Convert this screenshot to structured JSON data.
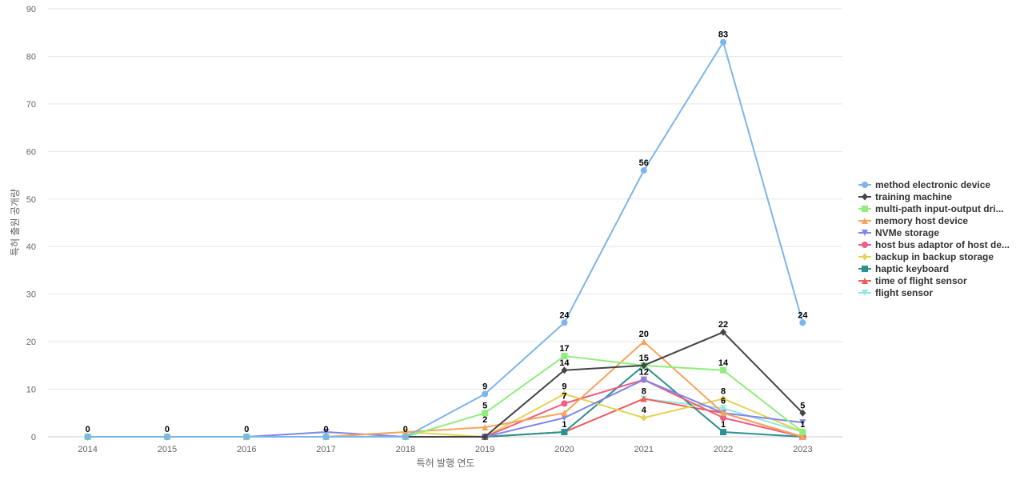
{
  "chart_data": {
    "type": "line",
    "xlabel": "특허 발행 연도",
    "ylabel": "특허 출원 공개량",
    "x": [
      "2014",
      "2015",
      "2016",
      "2017",
      "2018",
      "2019",
      "2020",
      "2021",
      "2022",
      "2023"
    ],
    "ylim": [
      0,
      90
    ],
    "yticks": [
      0,
      10,
      20,
      30,
      40,
      50,
      60,
      70,
      80,
      90
    ],
    "grid": true,
    "legend_position": "right",
    "series": [
      {
        "name": "method electronic device",
        "color": "#7cb5ec",
        "marker": "circle",
        "values": [
          0,
          0,
          0,
          0,
          0,
          9,
          24,
          56,
          83,
          24
        ]
      },
      {
        "name": "training machine",
        "color": "#434348",
        "marker": "diamond",
        "values": [
          0,
          0,
          0,
          0,
          0,
          0,
          14,
          15,
          22,
          5
        ]
      },
      {
        "name": "multi-path input-output dri...",
        "color": "#90ed7d",
        "marker": "square",
        "values": [
          0,
          0,
          0,
          0,
          0,
          5,
          17,
          15,
          14,
          1
        ]
      },
      {
        "name": "memory host device",
        "color": "#f7a35c",
        "marker": "triangle",
        "values": [
          0,
          0,
          0,
          0,
          1,
          2,
          5,
          20,
          5,
          0
        ]
      },
      {
        "name": "NVMe storage",
        "color": "#8085e9",
        "marker": "triangle-down",
        "values": [
          0,
          0,
          0,
          1,
          0,
          0,
          4,
          12,
          5,
          3
        ]
      },
      {
        "name": "host bus adaptor of host de...",
        "color": "#f15c80",
        "marker": "circle",
        "values": [
          0,
          0,
          0,
          0,
          0,
          0,
          7,
          12,
          4,
          0
        ]
      },
      {
        "name": "backup in backup storage",
        "color": "#e4d354",
        "marker": "diamond",
        "values": [
          0,
          0,
          0,
          0,
          1,
          0,
          9,
          4,
          8,
          1
        ]
      },
      {
        "name": "haptic keyboard",
        "color": "#2b908f",
        "marker": "square",
        "values": [
          0,
          0,
          0,
          0,
          0,
          0,
          1,
          15,
          1,
          0
        ]
      },
      {
        "name": "time of flight sensor",
        "color": "#f45b5b",
        "marker": "triangle",
        "values": [
          0,
          0,
          0,
          0,
          0,
          0,
          1,
          8,
          5,
          0
        ]
      },
      {
        "name": "flight sensor",
        "color": "#91e8e1",
        "marker": "triangle-down",
        "values": [
          0,
          0,
          0,
          0,
          0,
          0,
          1,
          8,
          6,
          1
        ]
      }
    ],
    "data_labels": [
      {
        "series": 0,
        "points": [
          0,
          1,
          2,
          3,
          4,
          5,
          6,
          7,
          8,
          9
        ]
      },
      {
        "series": 1,
        "points": [
          6,
          8,
          9
        ]
      },
      {
        "series": 2,
        "points": [
          5,
          6,
          8
        ]
      },
      {
        "series": 3,
        "points": [
          5,
          7
        ]
      },
      {
        "series": 5,
        "points": [
          6,
          7
        ]
      },
      {
        "series": 6,
        "points": [
          6,
          7,
          8
        ]
      },
      {
        "series": 7,
        "points": [
          7,
          8
        ]
      },
      {
        "series": 9,
        "points": [
          6,
          7,
          8,
          9
        ]
      }
    ]
  }
}
